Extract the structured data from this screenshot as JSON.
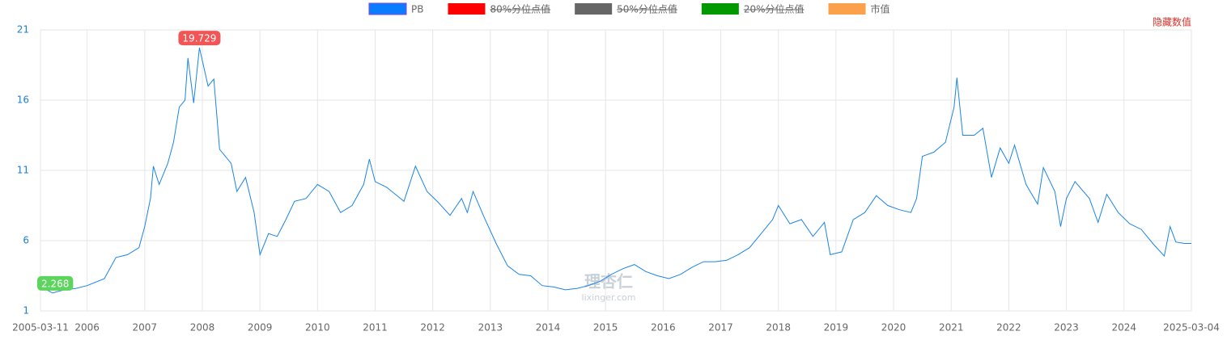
{
  "chart_data": {
    "type": "line",
    "x": [
      2005.19,
      2005.3,
      2005.4,
      2005.6,
      2005.8,
      2006.0,
      2006.3,
      2006.5,
      2006.7,
      2006.9,
      2007.0,
      2007.1,
      2007.15,
      2007.25,
      2007.4,
      2007.5,
      2007.6,
      2007.7,
      2007.75,
      2007.85,
      2007.95,
      2008.1,
      2008.2,
      2008.3,
      2008.5,
      2008.6,
      2008.75,
      2008.9,
      2009.0,
      2009.15,
      2009.3,
      2009.45,
      2009.6,
      2009.8,
      2010.0,
      2010.2,
      2010.4,
      2010.6,
      2010.8,
      2010.9,
      2011.0,
      2011.2,
      2011.5,
      2011.7,
      2011.9,
      2012.1,
      2012.3,
      2012.5,
      2012.6,
      2012.7,
      2012.9,
      2013.1,
      2013.3,
      2013.5,
      2013.7,
      2013.9,
      2014.1,
      2014.3,
      2014.5,
      2014.7,
      2014.9,
      2015.1,
      2015.3,
      2015.5,
      2015.7,
      2015.9,
      2016.1,
      2016.3,
      2016.5,
      2016.7,
      2016.9,
      2017.1,
      2017.3,
      2017.5,
      2017.7,
      2017.9,
      2018.0,
      2018.2,
      2018.4,
      2018.6,
      2018.8,
      2018.9,
      2019.1,
      2019.3,
      2019.5,
      2019.7,
      2019.9,
      2020.1,
      2020.3,
      2020.4,
      2020.5,
      2020.7,
      2020.9,
      2021.05,
      2021.1,
      2021.2,
      2021.4,
      2021.55,
      2021.7,
      2021.85,
      2022.0,
      2022.1,
      2022.3,
      2022.5,
      2022.6,
      2022.8,
      2022.9,
      2023.0,
      2023.15,
      2023.4,
      2023.55,
      2023.7,
      2023.9,
      2024.1,
      2024.3,
      2024.5,
      2024.7,
      2024.8,
      2024.9,
      2025.05,
      2025.17
    ],
    "series": [
      {
        "name": "PB",
        "color": "#1a85e6",
        "values": [
          2.6,
          2.5,
          2.268,
          2.5,
          2.6,
          2.8,
          3.3,
          4.8,
          5.0,
          5.5,
          7.0,
          9.0,
          11.3,
          10.0,
          11.5,
          13.0,
          15.5,
          16.0,
          19.0,
          15.8,
          19.729,
          17.0,
          17.5,
          12.5,
          11.5,
          9.5,
          10.5,
          8.0,
          5.0,
          6.5,
          6.3,
          7.5,
          8.8,
          9.0,
          10.0,
          9.5,
          8.0,
          8.5,
          10.0,
          11.8,
          10.2,
          9.8,
          8.8,
          11.3,
          9.5,
          8.7,
          7.8,
          9.0,
          8.0,
          9.5,
          7.6,
          5.8,
          4.2,
          3.6,
          3.5,
          2.8,
          2.7,
          2.5,
          2.6,
          2.8,
          3.1,
          3.6,
          4.0,
          4.3,
          3.8,
          3.5,
          3.3,
          3.6,
          4.1,
          4.5,
          4.5,
          4.6,
          5.0,
          5.5,
          6.5,
          7.5,
          8.5,
          7.2,
          7.5,
          6.3,
          7.3,
          5.0,
          5.2,
          7.5,
          8.0,
          9.2,
          8.5,
          8.2,
          8.0,
          9.0,
          12.0,
          12.3,
          13.0,
          15.5,
          17.6,
          13.5,
          13.5,
          14.0,
          10.5,
          12.6,
          11.5,
          12.8,
          10.0,
          8.6,
          11.2,
          9.5,
          7.0,
          9.0,
          10.2,
          9.0,
          7.3,
          9.3,
          8.0,
          7.2,
          6.8,
          5.8,
          4.9,
          7.0,
          5.9,
          5.8,
          5.8
        ]
      }
    ],
    "legend": [
      {
        "name": "PB",
        "color": "#0a7cff"
      },
      {
        "name": "80%分位点值",
        "color": "#ff0000",
        "hidden": true
      },
      {
        "name": "50%分位点值",
        "color": "#666666",
        "hidden": true
      },
      {
        "name": "20%分位点值",
        "color": "#009900",
        "hidden": true
      },
      {
        "name": "市值",
        "color": "#fba14c"
      }
    ],
    "max": {
      "x": 2007.95,
      "value": 19.729
    },
    "min": {
      "x": 2005.4,
      "value": 2.268
    },
    "xlim": [
      2005.19,
      2025.17
    ],
    "xticks": [
      {
        "value": 2005.19,
        "label": "2005-03-11"
      },
      2006,
      2007,
      2008,
      2009,
      2010,
      2011,
      2012,
      2013,
      2014,
      2015,
      2016,
      2017,
      2018,
      2019,
      2020,
      2021,
      2022,
      2023,
      2024,
      {
        "value": 2025.17,
        "label": "2025-03-04"
      }
    ],
    "ylim": [
      1,
      21
    ],
    "yticks": [
      1,
      6,
      11,
      16,
      21
    ],
    "grid": true,
    "button": "隐藏数值",
    "watermark": {
      "logo": "理杏仁",
      "url": "lixinger.com"
    }
  }
}
